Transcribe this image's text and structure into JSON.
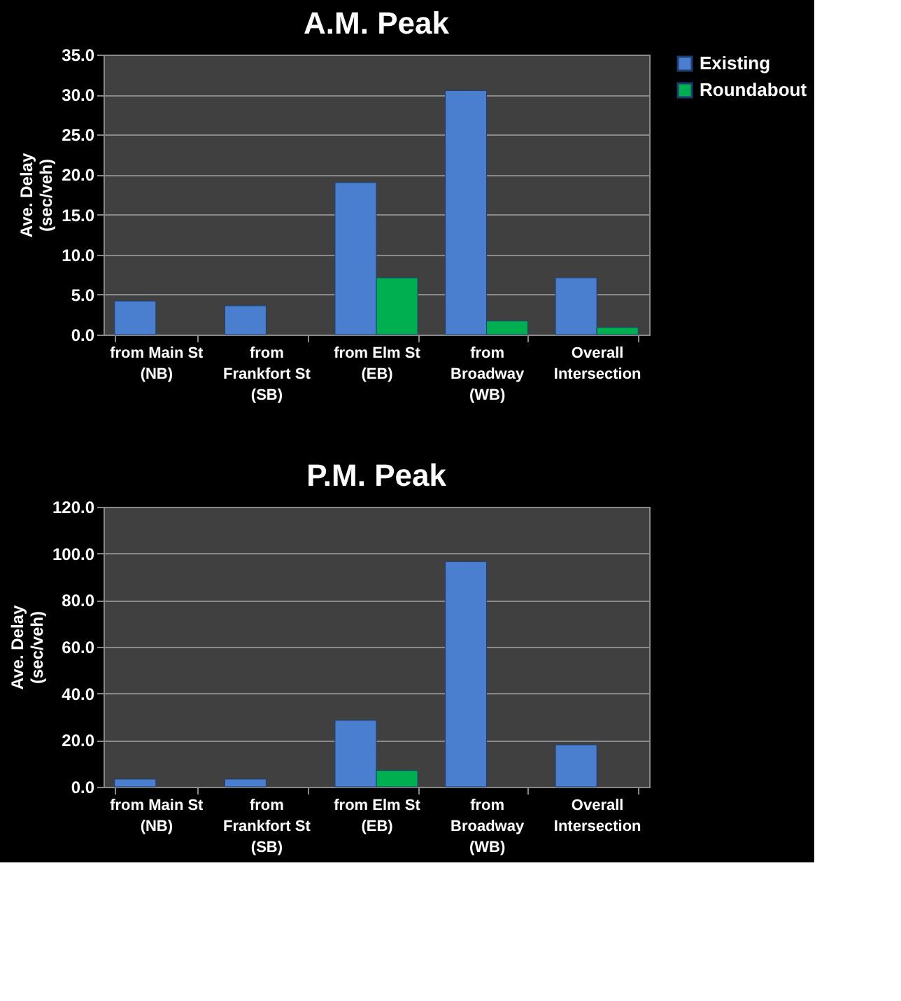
{
  "chart_data": [
    {
      "type": "bar",
      "title": "A.M. Peak",
      "ylabel": "Ave. Delay (sec/veh)",
      "categories": [
        "from Main St (NB)",
        "from Frankfort St (SB)",
        "from Elm St (EB)",
        "from Broadway (WB)",
        "Overall Intersection"
      ],
      "series": [
        {
          "name": "Existing",
          "color": "#4a7fd0",
          "values": [
            4.2,
            3.6,
            19.0,
            30.5,
            7.1
          ]
        },
        {
          "name": "Roundabout",
          "color": "#00b050",
          "values": [
            null,
            null,
            7.1,
            1.7,
            0.9
          ]
        }
      ],
      "ylim": [
        0,
        35
      ],
      "yticks": [
        {
          "value": 0,
          "label": "0.0"
        },
        {
          "value": 5,
          "label": "5.0"
        },
        {
          "value": 10,
          "label": "10.0"
        },
        {
          "value": 15,
          "label": "15.0"
        },
        {
          "value": 20,
          "label": "20.0"
        },
        {
          "value": 25,
          "label": "25.0"
        },
        {
          "value": 30,
          "label": "30.0"
        },
        {
          "value": 35,
          "label": "35.0"
        }
      ],
      "grid": "y",
      "legend": "right"
    },
    {
      "type": "bar",
      "title": "P.M. Peak",
      "ylabel": "Ave. Delay (sec/veh)",
      "categories": [
        "from Main St (NB)",
        "from Frankfort St (SB)",
        "from Elm St (EB)",
        "from Broadway (WB)",
        "Overall Intersection"
      ],
      "series": [
        {
          "name": "Existing",
          "color": "#4a7fd0",
          "values": [
            3.3,
            3.3,
            28.5,
            96.5,
            18.0
          ]
        },
        {
          "name": "Roundabout",
          "color": "#00b050",
          "values": [
            null,
            null,
            7.0,
            null,
            null
          ]
        }
      ],
      "ylim": [
        0,
        120
      ],
      "yticks": [
        {
          "value": 0,
          "label": "0.0"
        },
        {
          "value": 20,
          "label": "20.0"
        },
        {
          "value": 40,
          "label": "40.0"
        },
        {
          "value": 60,
          "label": "60.0"
        },
        {
          "value": 80,
          "label": "80.0"
        },
        {
          "value": 100,
          "label": "100.0"
        },
        {
          "value": 120,
          "label": "120.0"
        }
      ],
      "grid": "y",
      "legend": "right"
    }
  ]
}
